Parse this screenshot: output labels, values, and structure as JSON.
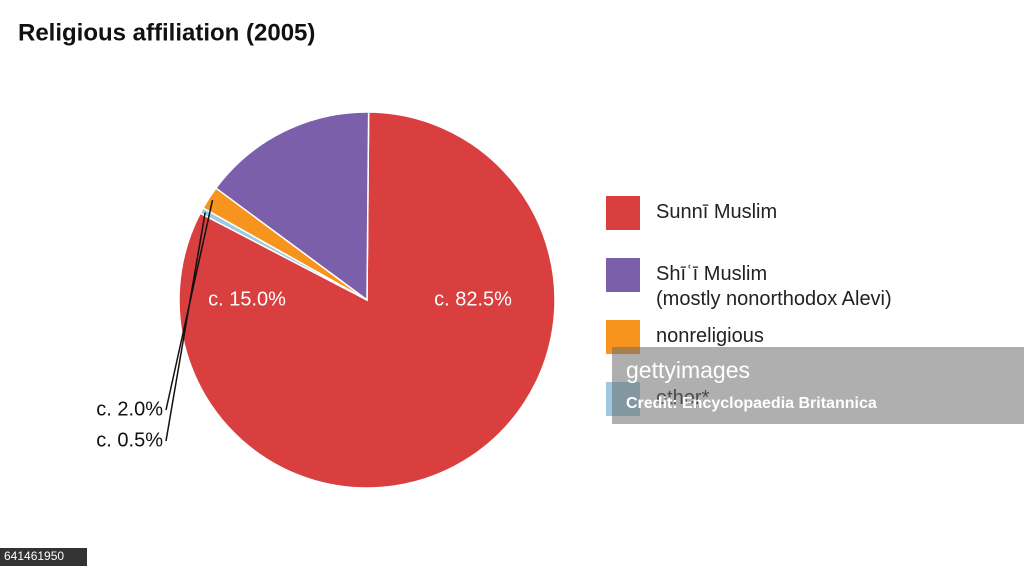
{
  "chart_data": {
    "type": "pie",
    "title": "Religious affiliation (2005)",
    "categories": [
      "Sunnī Muslim",
      "Shīʿī Muslim\n(mostly nonorthodox Alevi)",
      "nonreligious",
      "other*"
    ],
    "values": [
      82.5,
      15.0,
      2.0,
      0.5
    ],
    "value_labels": [
      "c. 82.5%",
      "c. 15.0%",
      "c. 2.0%",
      "c. 0.5%"
    ],
    "colors": [
      "#d93f3f",
      "#7b5faa",
      "#f7941d",
      "#9ecae1"
    ]
  },
  "watermark": {
    "brand": "gettyimages",
    "credit": "Credit: Encyclopaedia Britannica",
    "id": "641461950"
  }
}
